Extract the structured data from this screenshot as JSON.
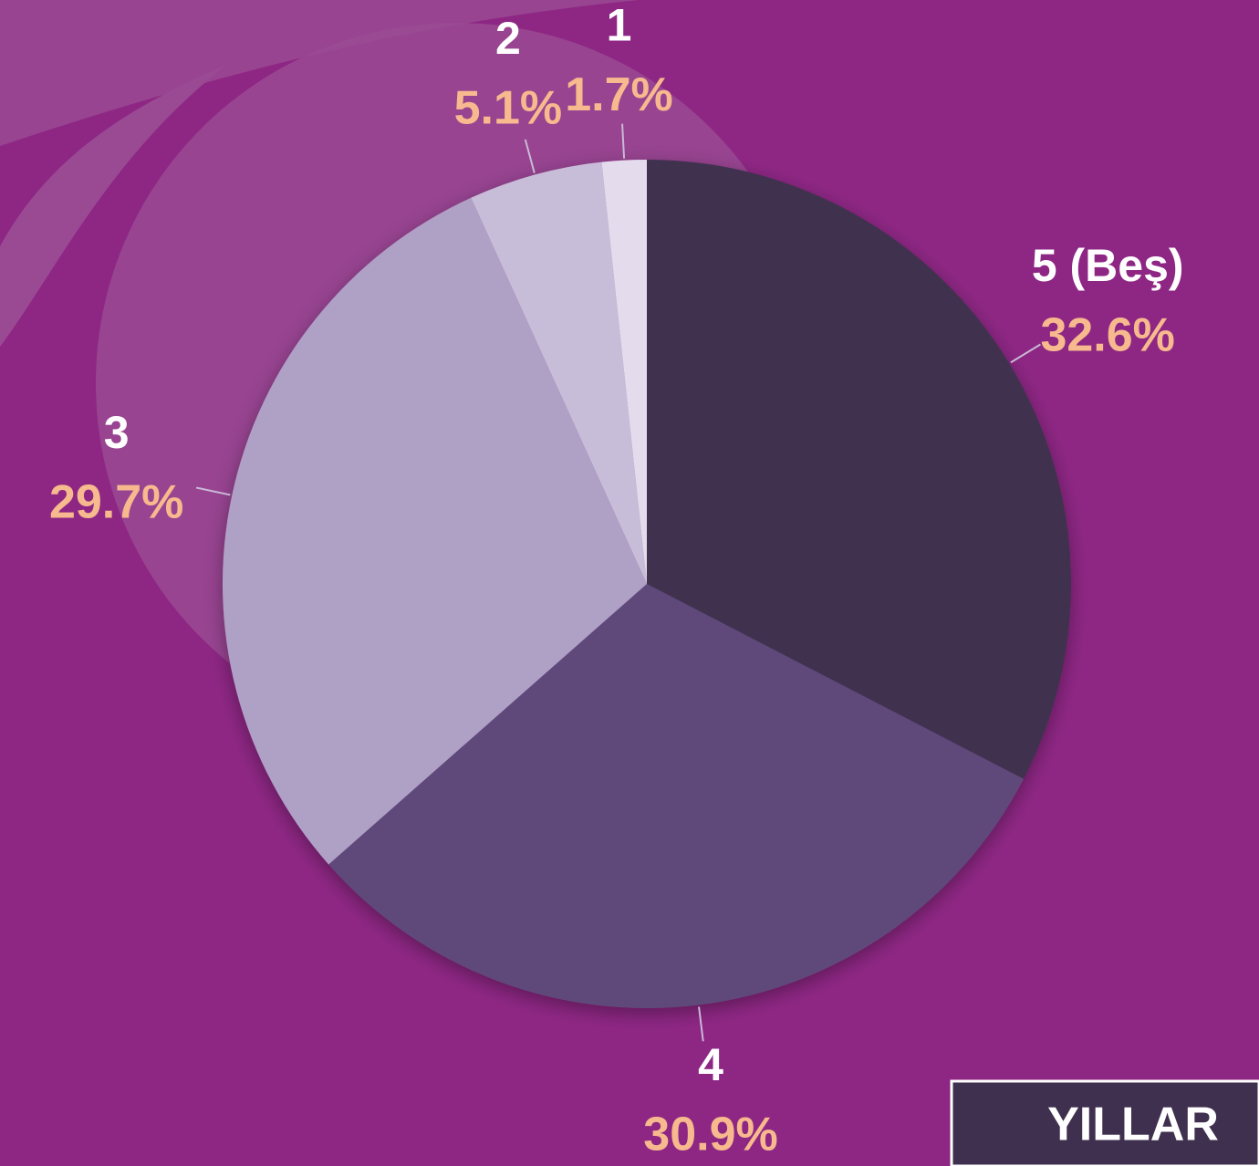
{
  "chart_data": {
    "type": "pie",
    "title": "YILLAR",
    "categories": [
      "5 (Beş)",
      "4",
      "3",
      "2",
      "1"
    ],
    "values": [
      32.6,
      30.9,
      29.7,
      5.1,
      1.7
    ],
    "value_labels": [
      "32.6%",
      "30.9%",
      "29.7%",
      "5.1%",
      "1.7%"
    ],
    "colors": [
      "#40304f",
      "#5e4a7a",
      "#afa0c6",
      "#c8bdd8",
      "#e4dced"
    ]
  }
}
